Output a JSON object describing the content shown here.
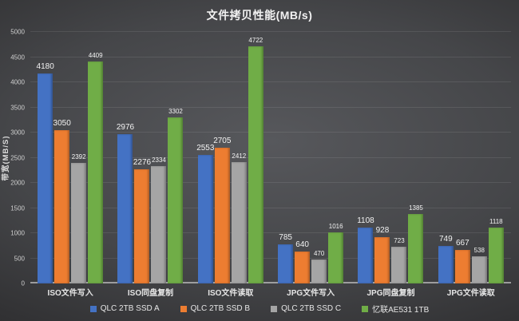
{
  "title": "文件拷贝性能(MB/s)",
  "y_axis": {
    "label": "带宽(MB/S)",
    "min": 0,
    "max": 5000,
    "step": 500
  },
  "chart_data": {
    "type": "bar",
    "title": "文件拷贝性能(MB/s)",
    "categories": [
      "ISO文件写入",
      "ISO同盘复制",
      "ISO文件读取",
      "JPG文件写入",
      "JPG同盘复制",
      "JPG文件读取"
    ],
    "series": [
      {
        "name": "QLC 2TB SSD A",
        "color": "#4472C4",
        "values": [
          4180,
          2976,
          2553,
          785,
          1108,
          749
        ]
      },
      {
        "name": "QLC 2TB SSD B",
        "color": "#ED7D31",
        "values": [
          3050,
          2276,
          2705,
          640,
          928,
          667
        ]
      },
      {
        "name": "QLC 2TB SSD C",
        "color": "#A5A5A5",
        "values": [
          2392,
          2334,
          2412,
          470,
          723,
          538
        ]
      },
      {
        "name": "忆联AE531 1TB",
        "color": "#70AD47",
        "values": [
          4409,
          3302,
          4722,
          1016,
          1385,
          1118
        ]
      }
    ],
    "xlabel": "",
    "ylabel": "带宽(MB/S)",
    "ylim": [
      0,
      5000
    ],
    "grid": true,
    "legend_position": "bottom",
    "background": "dark-gradient",
    "label_colors": {
      "text": "#f2f2f2",
      "axis": "#cfcfcf"
    }
  }
}
